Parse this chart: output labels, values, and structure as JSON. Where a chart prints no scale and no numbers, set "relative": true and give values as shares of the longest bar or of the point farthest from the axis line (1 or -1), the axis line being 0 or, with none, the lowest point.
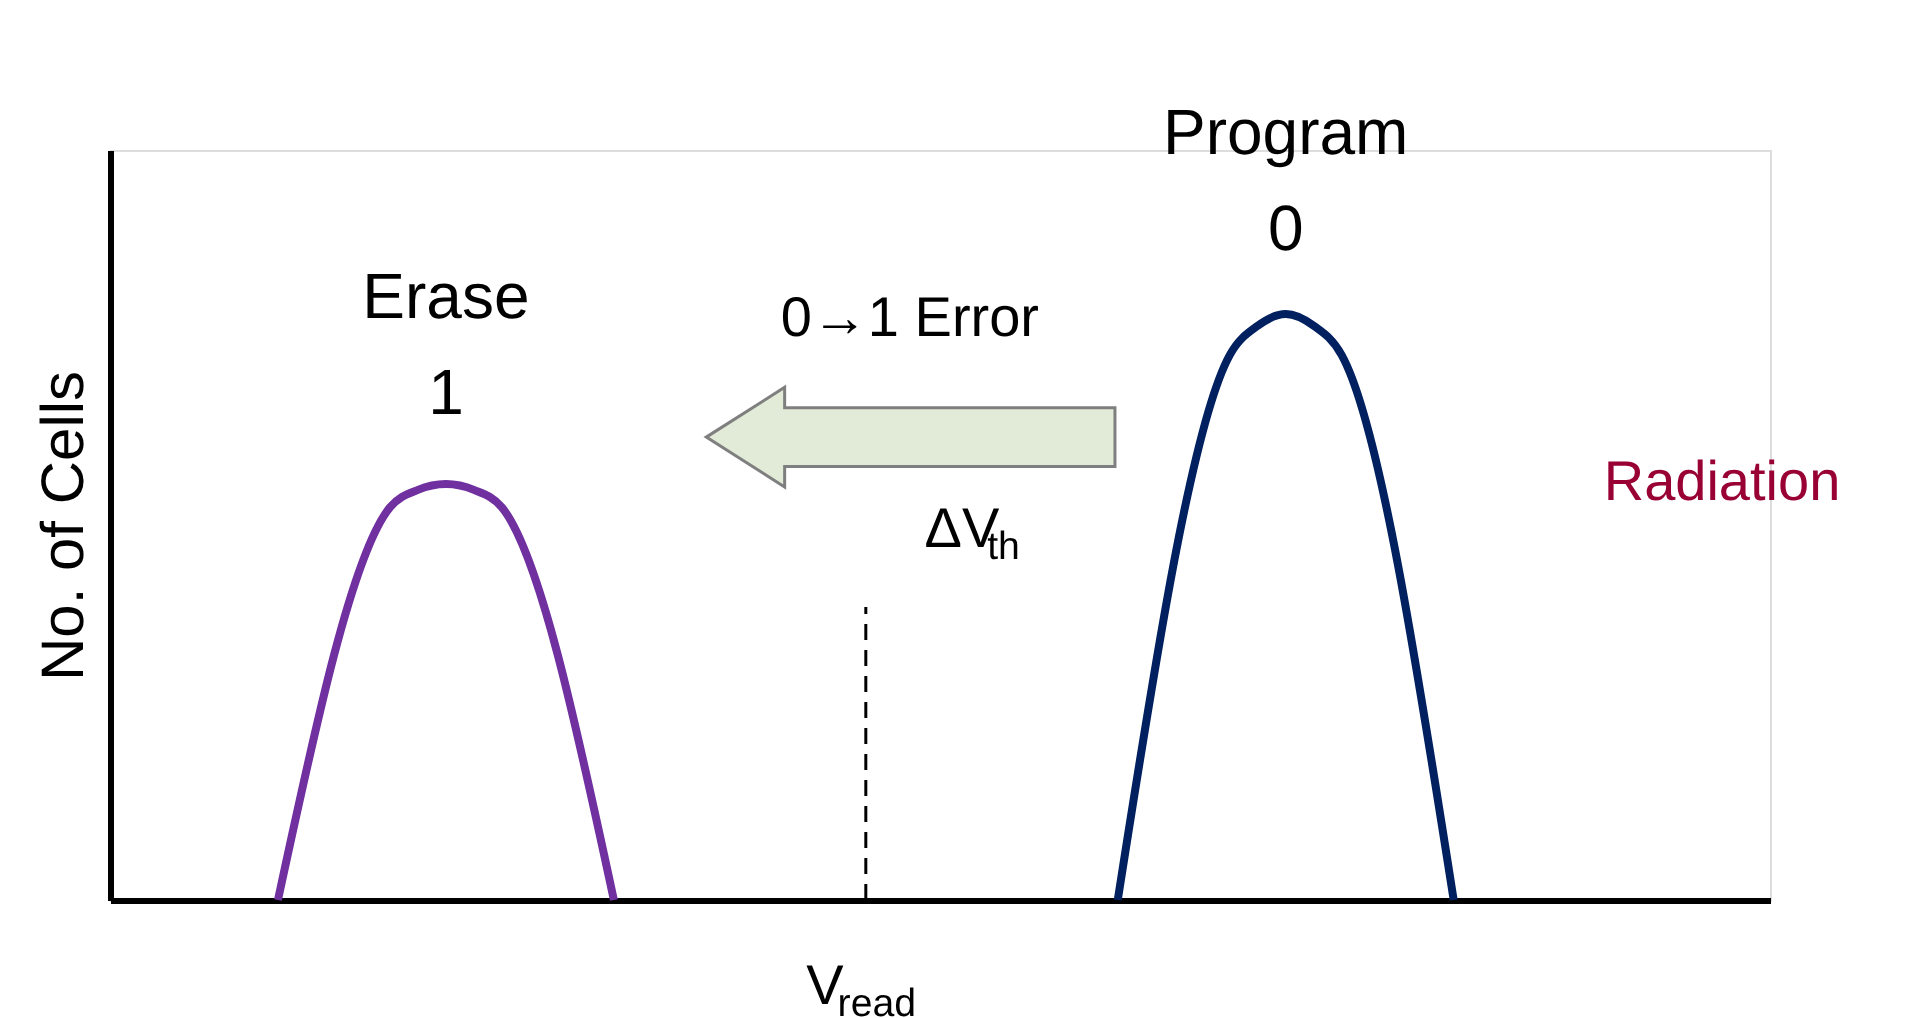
{
  "chart_data": {
    "type": "line",
    "relative": true,
    "ylabel": "No. of Cells",
    "categories": [
      null,
      null,
      null,
      null,
      null,
      null,
      null,
      null,
      null,
      null,
      null,
      null,
      null,
      null,
      null,
      null,
      null,
      null,
      null,
      null,
      null,
      null,
      null,
      null,
      null,
      null,
      null,
      null,
      null,
      null,
      null,
      null,
      null,
      null,
      null,
      null,
      null,
      null,
      null,
      null,
      null,
      null,
      null,
      null,
      null,
      null,
      null,
      null,
      null,
      null,
      null,
      null,
      null,
      null,
      null,
      null,
      null,
      null,
      null,
      null
    ],
    "series": [
      {
        "name": "Erase 1",
        "color": "#7030a0",
        "values": [
          null,
          null,
          null,
          null,
          null,
          null,
          0,
          null,
          null,
          null,
          0.67,
          0.7,
          0.71,
          0.7,
          0.67,
          null,
          null,
          null,
          0,
          null,
          null,
          null,
          null,
          null,
          null,
          null,
          null,
          null,
          null,
          null,
          null,
          null,
          null,
          null,
          null,
          null,
          null,
          null,
          null,
          null,
          null,
          null,
          null,
          null,
          null,
          null,
          null,
          null,
          null,
          null,
          null,
          null,
          null,
          null,
          null,
          null,
          null,
          null,
          null,
          null
        ]
      },
      {
        "name": "Program 0",
        "color": "#002060",
        "values": [
          null,
          null,
          null,
          null,
          null,
          null,
          null,
          null,
          null,
          null,
          null,
          null,
          null,
          null,
          null,
          null,
          null,
          null,
          null,
          null,
          null,
          null,
          null,
          null,
          null,
          null,
          null,
          null,
          null,
          null,
          null,
          null,
          null,
          null,
          null,
          null,
          0,
          null,
          null,
          null,
          0.93,
          0.98,
          1,
          0.98,
          0.93,
          null,
          null,
          null,
          0,
          null,
          null,
          null,
          null,
          null,
          null,
          null,
          null,
          null,
          null,
          null
        ]
      }
    ],
    "annotations": [
      "0→1 Error",
      "ΔV$_{th}$",
      "Radiation",
      "V$_{read}$"
    ],
    "legend": false,
    "grid": false,
    "marker": "none",
    "line_style": "solid",
    "tick_labels": false
  }
}
